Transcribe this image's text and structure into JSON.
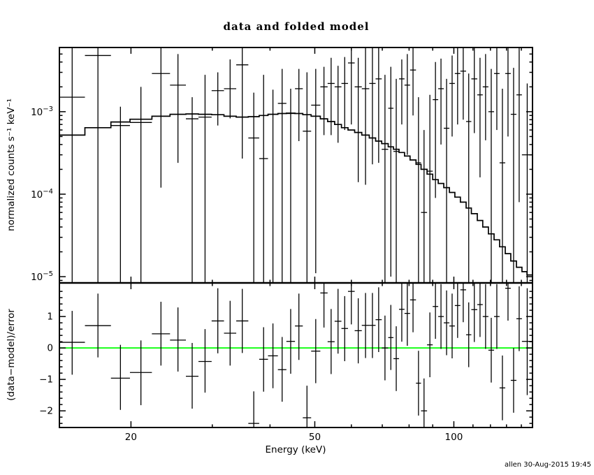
{
  "meta": {
    "title": "data and folded model",
    "credit": "allen 30-Aug-2015 19:45",
    "line_color": "#000000",
    "background": "#ffffff",
    "zero_line_color": "#00ff00"
  },
  "chart_data": [
    {
      "id": "folded-spectrum",
      "type": "scatter",
      "title": "data and folded model",
      "xlabel": "Energy (keV)",
      "ylabel": "normalized counts s⁻¹ keV⁻¹",
      "xscale": "log",
      "yscale": "log",
      "xlim": [
        14,
        148
      ],
      "ylim": [
        8.4e-06,
        0.006
      ],
      "grid": false,
      "legend": "none",
      "x_ticks": [
        {
          "v": 20,
          "label": "20"
        },
        {
          "v": 50,
          "label": "50"
        },
        {
          "v": 100,
          "label": "100"
        }
      ],
      "x_minor_ticks": [
        30,
        40,
        60,
        70,
        80,
        90,
        110,
        120,
        130,
        140
      ],
      "y_ticks": [
        {
          "v": 0.001,
          "base": "10",
          "exp": "−3"
        },
        {
          "v": 0.0001,
          "base": "10",
          "exp": "−4"
        },
        {
          "v": 1e-05,
          "base": "10",
          "exp": "−5"
        }
      ],
      "marker": "cross-with-error-bars",
      "point_format": [
        "e_lo_keV",
        "e_hi_keV",
        "value",
        "err_lo",
        "err_hi"
      ],
      "points": [
        [
          14.0,
          15.9,
          0.0015,
          2e-06,
          0.02
        ],
        [
          15.9,
          18.1,
          0.0048,
          2e-06,
          0.02
        ],
        [
          18.1,
          19.9,
          0.00068,
          2e-06,
          0.00115
        ],
        [
          19.9,
          22.2,
          0.00074,
          2e-06,
          0.002
        ],
        [
          22.2,
          24.3,
          0.0029,
          0.00012,
          0.02
        ],
        [
          24.3,
          26.3,
          0.0021,
          0.00024,
          0.005
        ],
        [
          26.3,
          28.0,
          0.00082,
          2e-06,
          0.0015
        ],
        [
          28.0,
          29.9,
          0.00086,
          2e-06,
          0.0028
        ],
        [
          29.9,
          31.8,
          0.0018,
          0.00068,
          0.003
        ],
        [
          31.8,
          33.8,
          0.0019,
          0.00083,
          0.0043
        ],
        [
          33.8,
          35.9,
          0.0037,
          0.00027,
          0.02
        ],
        [
          35.9,
          37.9,
          0.00048,
          2e-06,
          0.0017
        ],
        [
          37.9,
          39.6,
          0.00027,
          2e-06,
          0.0028
        ],
        [
          39.6,
          41.6,
          0.00093,
          2e-06,
          0.00185
        ],
        [
          41.6,
          43.4,
          0.00126,
          2e-06,
          0.0033
        ],
        [
          43.4,
          45.3,
          0.00095,
          2e-06,
          0.0019
        ],
        [
          45.3,
          47.1,
          0.0019,
          0.00044,
          0.0033
        ],
        [
          47.1,
          49.1,
          0.00058,
          2e-06,
          0.003
        ],
        [
          49.1,
          51.4,
          0.0012,
          1.1e-05,
          0.0033
        ],
        [
          51.4,
          53.3,
          0.002,
          0.00052,
          0.0035
        ],
        [
          53.3,
          55.2,
          0.0022,
          0.00052,
          0.0045
        ],
        [
          55.2,
          57.1,
          0.002,
          0.00042,
          0.0036
        ],
        [
          57.1,
          59.0,
          0.0022,
          0.0006,
          0.0046
        ],
        [
          59.0,
          61.0,
          0.0039,
          0.0007,
          0.02
        ],
        [
          61.0,
          63.2,
          0.002,
          0.00014,
          0.0045
        ],
        [
          63.2,
          65.6,
          0.0019,
          0.00013,
          0.008
        ],
        [
          65.6,
          67.7,
          0.0022,
          0.00023,
          0.007
        ],
        [
          67.7,
          69.8,
          0.0025,
          0.00024,
          0.006
        ],
        [
          69.8,
          72.1,
          0.00035,
          2e-06,
          0.0028
        ],
        [
          72.1,
          74.0,
          0.0011,
          1e-05,
          0.0035
        ],
        [
          74.0,
          76.1,
          0.00033,
          2e-06,
          0.0025
        ],
        [
          76.1,
          78.2,
          0.0025,
          0.0007,
          0.0043
        ],
        [
          78.2,
          80.4,
          0.0021,
          0.0003,
          0.005
        ],
        [
          80.4,
          82.8,
          0.0032,
          0.0009,
          0.007
        ],
        [
          82.8,
          84.9,
          0.00024,
          2e-06,
          0.0015
        ],
        [
          84.9,
          87.5,
          6e-05,
          2e-06,
          0.0006
        ],
        [
          87.5,
          90.0,
          0.00019,
          2e-06,
          0.0016
        ],
        [
          90.0,
          92.5,
          0.0014,
          9e-05,
          0.004
        ],
        [
          92.5,
          95.1,
          0.0019,
          0.0004,
          0.0044
        ],
        [
          95.1,
          97.8,
          0.00063,
          2e-06,
          0.0025
        ],
        [
          97.8,
          100.5,
          0.0022,
          0.0005,
          0.0048
        ],
        [
          100.5,
          103.3,
          0.0029,
          0.0007,
          0.0065
        ],
        [
          103.3,
          106.3,
          0.0031,
          0.0008,
          0.007
        ],
        [
          106.3,
          109.1,
          0.00076,
          2e-06,
          0.0029
        ],
        [
          109.1,
          112.4,
          0.0025,
          0.00055,
          0.006
        ],
        [
          112.4,
          115.5,
          0.0016,
          0.00016,
          0.0045
        ],
        [
          115.5,
          118.8,
          0.002,
          0.00045,
          0.005
        ],
        [
          118.8,
          122.2,
          0.001,
          8e-06,
          0.0033
        ],
        [
          122.2,
          125.6,
          0.0029,
          0.0006,
          0.007
        ],
        [
          125.6,
          129.2,
          0.00024,
          2e-06,
          0.0019
        ],
        [
          129.2,
          132.8,
          0.0029,
          0.0005,
          0.008
        ],
        [
          132.8,
          136.6,
          0.00093,
          6e-06,
          0.0034
        ],
        [
          136.6,
          140.4,
          0.0016,
          8e-05,
          0.006
        ],
        [
          140.4,
          148.0,
          0.0003,
          2e-06,
          0.0022
        ]
      ],
      "model": {
        "label": "folded model",
        "style": "step-line",
        "step_format": [
          "e_keV",
          "value"
        ],
        "steps": [
          [
            14.0,
            0.00052
          ],
          [
            15.9,
            0.00064
          ],
          [
            18.1,
            0.00075
          ],
          [
            19.9,
            0.00081
          ],
          [
            22.2,
            0.00088
          ],
          [
            24.3,
            0.00093
          ],
          [
            26.3,
            0.00094
          ],
          [
            28.0,
            0.00093
          ],
          [
            29.9,
            0.00092
          ],
          [
            31.8,
            0.00088
          ],
          [
            33.8,
            0.00086
          ],
          [
            35.9,
            0.00087
          ],
          [
            37.9,
            0.0009
          ],
          [
            39.6,
            0.00093
          ],
          [
            41.6,
            0.00095
          ],
          [
            43.4,
            0.00096
          ],
          [
            45.3,
            0.00095
          ],
          [
            47.1,
            0.00092
          ],
          [
            49.1,
            0.00088
          ],
          [
            51.4,
            0.00082
          ],
          [
            53.3,
            0.00076
          ],
          [
            55.2,
            0.0007
          ],
          [
            57.1,
            0.00064
          ],
          [
            59.0,
            0.0006
          ],
          [
            61.0,
            0.00056
          ],
          [
            63.2,
            0.00052
          ],
          [
            65.6,
            0.00048
          ],
          [
            67.7,
            0.00044
          ],
          [
            69.8,
            0.00041
          ],
          [
            72.1,
            0.000375
          ],
          [
            74.0,
            0.00035
          ],
          [
            76.1,
            0.00032
          ],
          [
            78.2,
            0.00029
          ],
          [
            80.4,
            0.00026
          ],
          [
            82.8,
            0.00023
          ],
          [
            84.9,
            0.0002
          ],
          [
            87.5,
            0.000175
          ],
          [
            90.0,
            0.00015
          ],
          [
            92.5,
            0.000135
          ],
          [
            95.1,
            0.00012
          ],
          [
            97.8,
            0.000105
          ],
          [
            100.5,
            9.2e-05
          ],
          [
            103.3,
            8e-05
          ],
          [
            106.3,
            6.8e-05
          ],
          [
            109.1,
            5.8e-05
          ],
          [
            112.4,
            4.8e-05
          ],
          [
            115.5,
            4e-05
          ],
          [
            118.8,
            3.3e-05
          ],
          [
            122.2,
            2.8e-05
          ],
          [
            125.6,
            2.3e-05
          ],
          [
            129.2,
            1.9e-05
          ],
          [
            132.8,
            1.55e-05
          ],
          [
            136.6,
            1.3e-05
          ],
          [
            140.4,
            1.15e-05
          ],
          [
            144.0,
            1.05e-05
          ],
          [
            148.0,
            1e-05
          ]
        ]
      }
    },
    {
      "id": "residuals",
      "type": "scatter",
      "ylabel": "(data−model)/error",
      "xlabel": "Energy (keV)",
      "xscale": "log",
      "yscale": "linear",
      "xlim": [
        14,
        148
      ],
      "ylim": [
        -2.53,
        2.07
      ],
      "zero_line": 0,
      "y_ticks": [
        {
          "v": 1,
          "label": "1"
        },
        {
          "v": 0,
          "label": "0"
        },
        {
          "v": -1,
          "label": "−1"
        },
        {
          "v": -2,
          "label": "−2"
        }
      ],
      "y_minor_step": 0.2,
      "point_format": [
        "e_lo_keV",
        "e_hi_keV",
        "value",
        "err_lo",
        "err_hi"
      ],
      "points": [
        [
          14.0,
          15.9,
          0.18,
          -0.85,
          1.18
        ],
        [
          15.9,
          18.1,
          0.71,
          -0.3,
          1.73
        ],
        [
          18.1,
          19.9,
          -0.96,
          -1.97,
          0.1
        ],
        [
          19.9,
          22.2,
          -0.78,
          -1.82,
          0.24
        ],
        [
          22.2,
          24.3,
          0.45,
          -0.56,
          1.47
        ],
        [
          24.3,
          26.3,
          0.25,
          -0.75,
          1.29
        ],
        [
          26.3,
          28.0,
          -0.9,
          -1.93,
          0.16
        ],
        [
          28.0,
          29.9,
          -0.43,
          -1.42,
          0.6
        ],
        [
          29.9,
          31.8,
          0.86,
          -0.17,
          1.9
        ],
        [
          31.8,
          33.8,
          0.47,
          -0.56,
          1.5
        ],
        [
          33.8,
          35.9,
          0.86,
          -0.16,
          1.88
        ],
        [
          35.9,
          37.9,
          -2.4,
          -3.4,
          -1.38
        ],
        [
          37.9,
          39.6,
          -0.36,
          -1.39,
          0.66
        ],
        [
          39.6,
          41.6,
          -0.25,
          -1.28,
          0.78
        ],
        [
          41.6,
          43.4,
          -0.69,
          -1.71,
          0.35
        ],
        [
          43.4,
          45.3,
          0.21,
          -0.82,
          1.24
        ],
        [
          45.3,
          47.1,
          0.7,
          -0.38,
          1.73
        ],
        [
          47.1,
          49.1,
          -2.22,
          -3.2,
          -1.2
        ],
        [
          49.1,
          51.4,
          -0.1,
          -1.12,
          0.92
        ],
        [
          51.4,
          53.3,
          1.75,
          0.65,
          2.8
        ],
        [
          53.3,
          55.2,
          0.2,
          -0.83,
          1.24
        ],
        [
          55.2,
          57.1,
          0.85,
          -0.18,
          1.88
        ],
        [
          57.1,
          59.0,
          0.62,
          -0.42,
          1.65
        ],
        [
          59.0,
          61.0,
          1.8,
          0.75,
          2.85
        ],
        [
          61.0,
          63.2,
          0.55,
          -0.49,
          1.58
        ],
        [
          63.2,
          65.6,
          0.72,
          -0.32,
          1.75
        ],
        [
          65.6,
          67.7,
          0.72,
          -0.32,
          1.75
        ],
        [
          67.7,
          69.8,
          0.9,
          -0.13,
          1.93
        ],
        [
          69.8,
          72.1,
          0.0,
          -1.03,
          1.03
        ],
        [
          72.1,
          74.0,
          0.33,
          -0.7,
          1.37
        ],
        [
          74.0,
          76.1,
          -0.34,
          -1.37,
          0.69
        ],
        [
          76.1,
          78.2,
          1.23,
          0.2,
          2.26
        ],
        [
          78.2,
          80.4,
          1.1,
          0.07,
          2.13
        ],
        [
          80.4,
          82.8,
          1.53,
          0.5,
          2.56
        ],
        [
          82.8,
          84.9,
          -1.12,
          -2.15,
          -0.09
        ],
        [
          84.9,
          87.5,
          -2.0,
          -3.0,
          -0.97
        ],
        [
          87.5,
          90.0,
          0.1,
          -0.93,
          1.13
        ],
        [
          90.0,
          92.5,
          1.32,
          0.29,
          2.35
        ],
        [
          92.5,
          95.1,
          1.0,
          -0.03,
          2.03
        ],
        [
          95.1,
          97.8,
          0.8,
          -0.23,
          1.83
        ],
        [
          97.8,
          100.5,
          0.7,
          -0.33,
          1.73
        ],
        [
          100.5,
          103.3,
          1.35,
          0.32,
          2.38
        ],
        [
          103.3,
          106.3,
          1.85,
          0.82,
          2.88
        ],
        [
          106.3,
          109.1,
          0.42,
          -0.61,
          1.45
        ],
        [
          109.1,
          112.4,
          1.22,
          0.19,
          2.25
        ],
        [
          112.4,
          115.5,
          1.38,
          0.35,
          2.41
        ],
        [
          115.5,
          118.8,
          1.0,
          -0.03,
          2.03
        ],
        [
          118.8,
          122.2,
          -0.07,
          -1.1,
          0.96
        ],
        [
          122.2,
          125.6,
          1.0,
          -0.03,
          2.03
        ],
        [
          125.6,
          129.2,
          -1.27,
          -2.3,
          -0.24
        ],
        [
          129.2,
          132.8,
          1.9,
          0.87,
          2.93
        ],
        [
          132.8,
          136.6,
          -1.03,
          -2.06,
          0.0
        ],
        [
          136.6,
          140.4,
          0.93,
          -0.1,
          1.96
        ],
        [
          140.4,
          148.0,
          0.21,
          -1.5,
          1.9
        ]
      ]
    }
  ]
}
